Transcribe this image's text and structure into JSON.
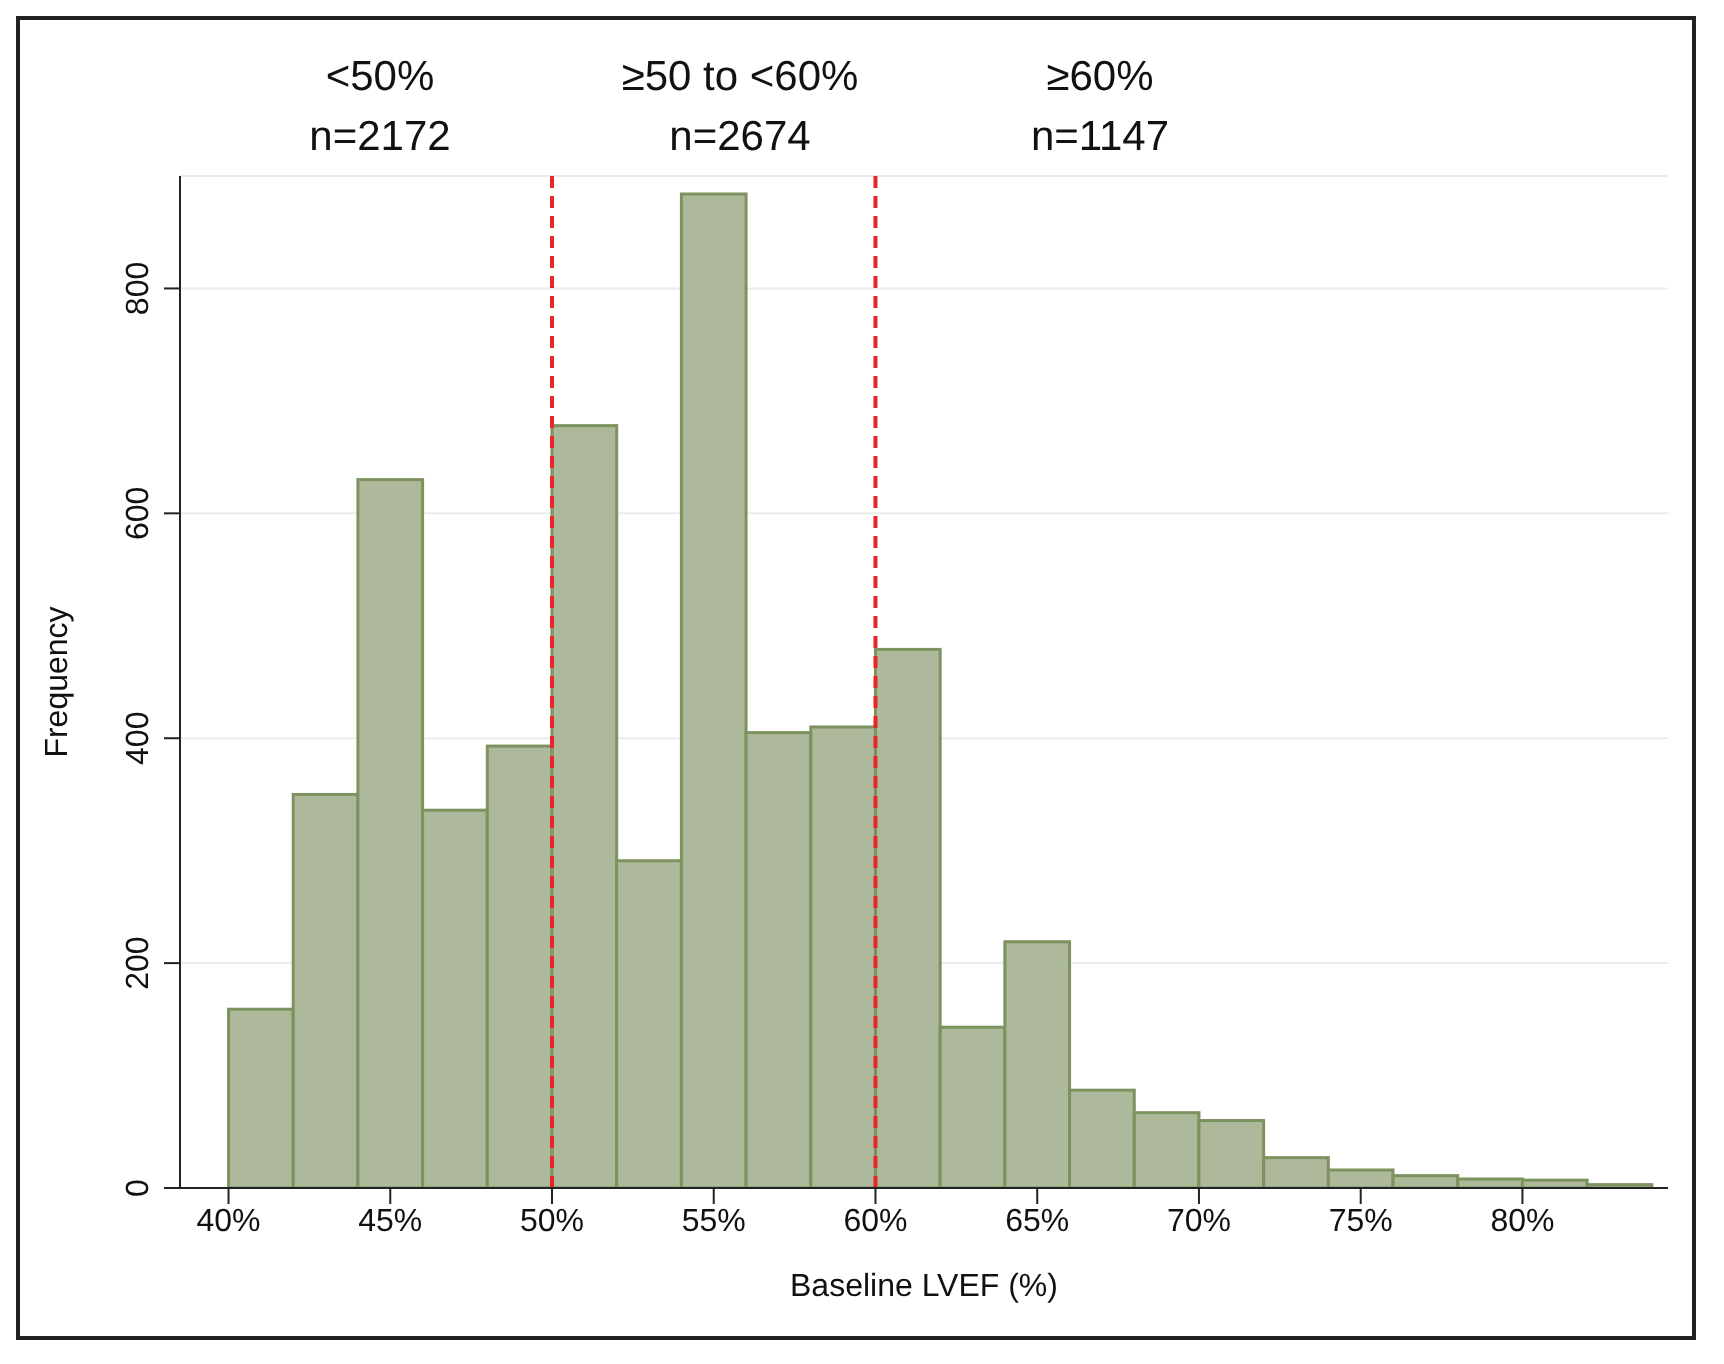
{
  "chart_data": {
    "type": "histogram",
    "xlabel": "Baseline LVEF (%)",
    "ylabel": "Frequency",
    "annotations": [
      "<50%\nn=2172",
      "≥50 to <60%\nn=2674",
      "≥60%\nn=1147"
    ],
    "bins": [
      40,
      42,
      44,
      46,
      48,
      50,
      52,
      54,
      56,
      58,
      60,
      62,
      64,
      66,
      68,
      70,
      72,
      74,
      76,
      78,
      80,
      82,
      84
    ],
    "values": [
      159,
      350,
      630,
      336,
      393,
      678,
      291,
      884,
      405,
      410,
      479,
      143,
      219,
      87,
      67,
      60,
      27,
      16,
      11,
      8,
      7,
      3
    ],
    "color": "#adb99a",
    "xlim": [
      38.5,
      84.5
    ],
    "xticks": [
      {
        "value": 40,
        "label": "40%"
      },
      {
        "value": 45,
        "label": "45%"
      },
      {
        "value": 50,
        "label": "50%"
      },
      {
        "value": 55,
        "label": "55%"
      },
      {
        "value": 60,
        "label": "60%"
      },
      {
        "value": 65,
        "label": "65%"
      },
      {
        "value": 70,
        "label": "70%"
      },
      {
        "value": 75,
        "label": "75%"
      },
      {
        "value": 80,
        "label": "80%"
      }
    ],
    "ylim": [
      0,
      900
    ],
    "yticks": [
      0,
      200,
      400,
      600,
      800
    ],
    "grid": "y",
    "ref_lines": [
      {
        "axis": "x",
        "value": 50,
        "color": "#e8262a",
        "line_style": "dashed"
      },
      {
        "axis": "x",
        "value": 60,
        "color": "#e8262a",
        "line_style": "dashed"
      }
    ]
  }
}
